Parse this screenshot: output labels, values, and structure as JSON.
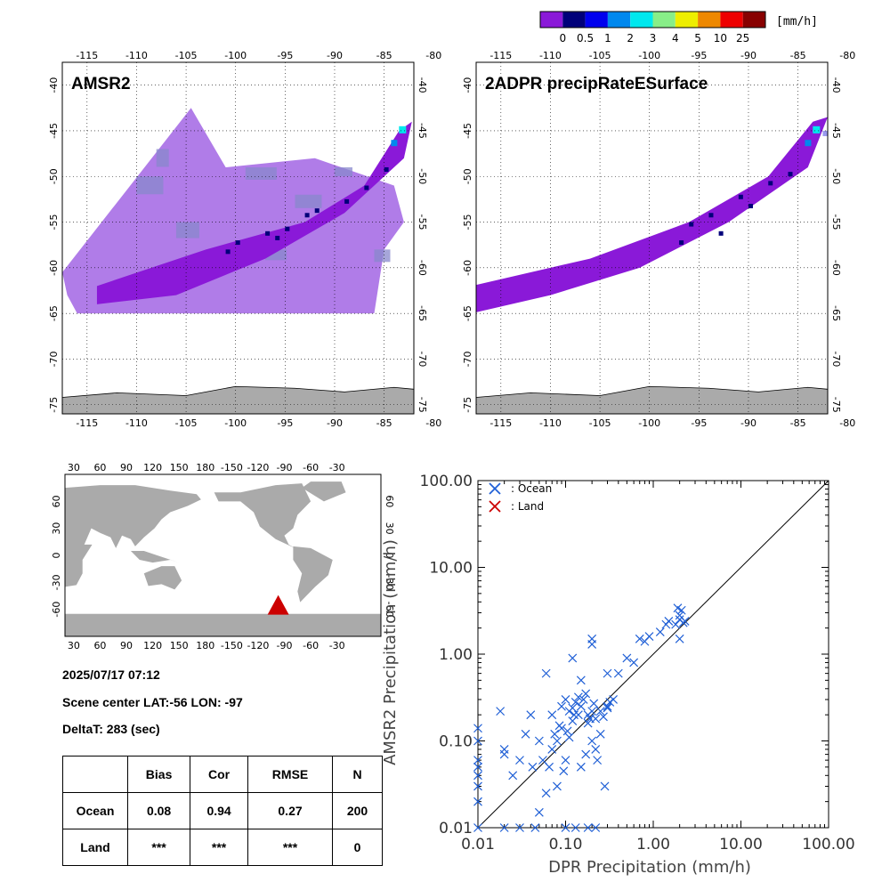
{
  "colorbar": {
    "colors": [
      "#8a19d8",
      "#00007a",
      "#0000ee",
      "#0088ee",
      "#00e8ee",
      "#88ee88",
      "#eeee00",
      "#ee8800",
      "#ee0000",
      "#880000"
    ],
    "labels": [
      "0",
      "0.5",
      "1",
      "2",
      "3",
      "4",
      "5",
      "10",
      "25"
    ],
    "unit": "[mm/h]"
  },
  "maps": [
    {
      "title": "AMSR2",
      "lon_ticks": [
        "-115",
        "-110",
        "-105",
        "-100",
        "-95",
        "-90",
        "-85",
        "-80"
      ],
      "lat_ticks": [
        "-40",
        "-45",
        "-50",
        "-55",
        "-60",
        "-65",
        "-70",
        "-75"
      ]
    },
    {
      "title": "2ADPR precipRateESurface",
      "lon_ticks": [
        "-115",
        "-110",
        "-105",
        "-100",
        "-95",
        "-90",
        "-85",
        "-80"
      ],
      "lat_ticks": [
        "-40",
        "-45",
        "-50",
        "-55",
        "-60",
        "-65",
        "-70",
        "-75"
      ]
    }
  ],
  "world_map": {
    "lon_ticks": [
      "30",
      "60",
      "90",
      "120",
      "150",
      "180",
      "-150",
      "-120",
      "-90",
      "-60",
      "-30"
    ],
    "lat_ticks": [
      "60",
      "30",
      "0",
      "-30",
      "-60"
    ],
    "marker": {
      "lon": -97,
      "lat": -56,
      "color": "#cc0000"
    }
  },
  "info": {
    "datetime": "2025/07/17 07:12",
    "scene_center": "Scene center LAT:-56   LON: -97",
    "delta_t": "DeltaT:  283 (sec)"
  },
  "stats_table": {
    "headers": [
      "",
      "Bias",
      "Cor",
      "RMSE",
      "N"
    ],
    "rows": [
      [
        "Ocean",
        "0.08",
        "0.94",
        "0.27",
        "200"
      ],
      [
        "Land",
        "***",
        "***",
        "***",
        "0"
      ]
    ]
  },
  "chart_data": {
    "type": "scatter",
    "xlabel": "DPR Precipitation (mm/h)",
    "ylabel": "AMSR2 Precipitation (mm/h)",
    "xscale": "log",
    "yscale": "log",
    "xlim": [
      0.01,
      100
    ],
    "ylim": [
      0.01,
      100
    ],
    "x_tick_labels": [
      "0.01",
      "0.10",
      "1.00",
      "10.00",
      "100.00"
    ],
    "y_tick_labels": [
      "0.01",
      "0.10",
      "1.00",
      "10.00",
      "100.00"
    ],
    "legend": {
      "position": "top-left",
      "entries": [
        ": Ocean",
        ": Land"
      ]
    },
    "series": [
      {
        "name": "Ocean",
        "color": "#1f5fd6",
        "points": [
          [
            0.01,
            0.01
          ],
          [
            0.01,
            0.02
          ],
          [
            0.01,
            0.03
          ],
          [
            0.01,
            0.04
          ],
          [
            0.01,
            0.05
          ],
          [
            0.01,
            0.06
          ],
          [
            0.01,
            0.14
          ],
          [
            0.01,
            0.1
          ],
          [
            0.02,
            0.01
          ],
          [
            0.03,
            0.01
          ],
          [
            0.045,
            0.01
          ],
          [
            0.1,
            0.01
          ],
          [
            0.13,
            0.01
          ],
          [
            0.18,
            0.01
          ],
          [
            0.22,
            0.01
          ],
          [
            0.018,
            0.22
          ],
          [
            0.02,
            0.07
          ],
          [
            0.02,
            0.08
          ],
          [
            0.025,
            0.04
          ],
          [
            0.03,
            0.06
          ],
          [
            0.035,
            0.12
          ],
          [
            0.04,
            0.2
          ],
          [
            0.042,
            0.05
          ],
          [
            0.05,
            0.015
          ],
          [
            0.055,
            0.06
          ],
          [
            0.06,
            0.025
          ],
          [
            0.065,
            0.05
          ],
          [
            0.07,
            0.08
          ],
          [
            0.075,
            0.12
          ],
          [
            0.08,
            0.1
          ],
          [
            0.085,
            0.15
          ],
          [
            0.09,
            0.14
          ],
          [
            0.095,
            0.045
          ],
          [
            0.1,
            0.06
          ],
          [
            0.105,
            0.13
          ],
          [
            0.11,
            0.11
          ],
          [
            0.12,
            0.24
          ],
          [
            0.125,
            0.2
          ],
          [
            0.13,
            0.28
          ],
          [
            0.14,
            0.32
          ],
          [
            0.15,
            0.25
          ],
          [
            0.16,
            0.3
          ],
          [
            0.17,
            0.35
          ],
          [
            0.18,
            0.2
          ],
          [
            0.19,
            0.18
          ],
          [
            0.2,
            0.22
          ],
          [
            0.21,
            0.27
          ],
          [
            0.22,
            0.08
          ],
          [
            0.23,
            0.06
          ],
          [
            0.25,
            0.12
          ],
          [
            0.27,
            0.19
          ],
          [
            0.28,
            0.03
          ],
          [
            0.3,
            0.24
          ],
          [
            0.32,
            0.28
          ],
          [
            0.06,
            0.6
          ],
          [
            0.1,
            0.3
          ],
          [
            0.12,
            0.9
          ],
          [
            0.15,
            0.5
          ],
          [
            0.2,
            1.3
          ],
          [
            0.2,
            1.5
          ],
          [
            0.3,
            0.6
          ],
          [
            0.4,
            0.6
          ],
          [
            0.5,
            0.9
          ],
          [
            0.6,
            0.8
          ],
          [
            0.15,
            0.05
          ],
          [
            0.17,
            0.07
          ],
          [
            0.2,
            0.1
          ],
          [
            0.08,
            0.03
          ],
          [
            0.05,
            0.1
          ],
          [
            0.07,
            0.2
          ],
          [
            0.09,
            0.25
          ],
          [
            0.7,
            1.5
          ],
          [
            0.8,
            1.4
          ],
          [
            0.9,
            1.6
          ],
          [
            1.2,
            1.8
          ],
          [
            1.4,
            2.2
          ],
          [
            1.5,
            2.4
          ],
          [
            1.8,
            2.2
          ],
          [
            2.0,
            2.5
          ],
          [
            2.0,
            2.8
          ],
          [
            2.1,
            3.2
          ],
          [
            1.9,
            3.4
          ],
          [
            2.2,
            2.3
          ],
          [
            2.0,
            1.5
          ],
          [
            2.3,
            2.4
          ],
          [
            0.35,
            0.3
          ],
          [
            0.3,
            0.25
          ],
          [
            0.25,
            0.22
          ],
          [
            0.22,
            0.18
          ],
          [
            0.18,
            0.16
          ],
          [
            0.14,
            0.2
          ],
          [
            0.12,
            0.17
          ],
          [
            0.11,
            0.22
          ]
        ]
      },
      {
        "name": "Land",
        "color": "#cc0000",
        "points": []
      }
    ]
  }
}
